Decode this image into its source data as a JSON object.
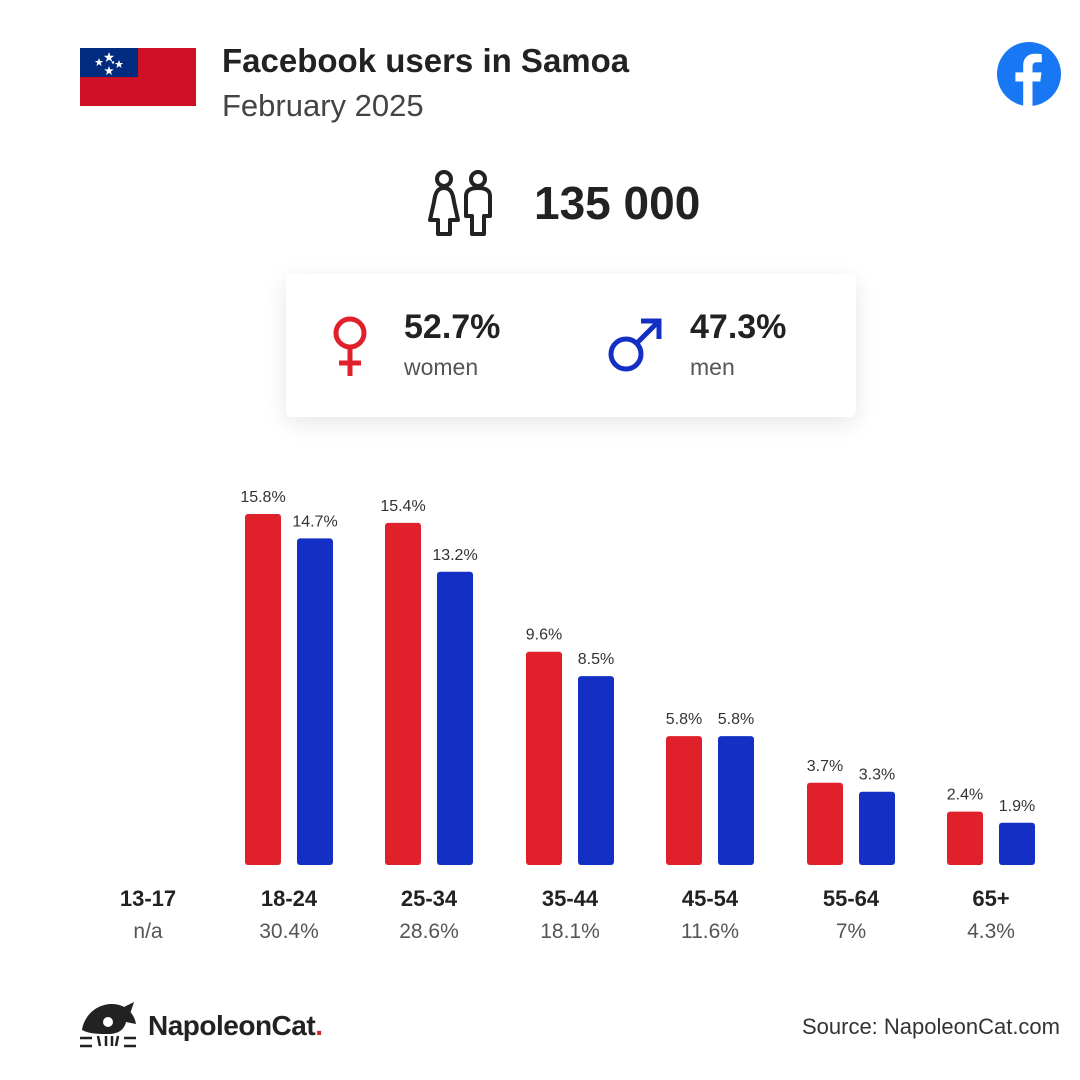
{
  "header": {
    "title": "Facebook users in Samoa",
    "subtitle": "February 2025",
    "flag_icon": "samoa-flag",
    "brand_icon": "facebook-icon"
  },
  "summary": {
    "total_users": "135 000",
    "icon": "people-icon"
  },
  "gender": {
    "women": {
      "pct": "52.7%",
      "label": "women",
      "icon": "female-symbol-icon",
      "color": "#e0202a"
    },
    "men": {
      "pct": "47.3%",
      "label": "men",
      "icon": "male-symbol-icon",
      "color": "#1430c4"
    }
  },
  "chart_data": {
    "type": "bar",
    "categories": [
      "13-17",
      "18-24",
      "25-34",
      "35-44",
      "45-54",
      "55-64",
      "65+"
    ],
    "category_totals": [
      "n/a",
      "30.4%",
      "28.6%",
      "18.1%",
      "11.6%",
      "7%",
      "4.3%"
    ],
    "series": [
      {
        "key": "women",
        "color": "#e0202a",
        "values": [
          null,
          15.8,
          15.4,
          9.6,
          5.8,
          3.7,
          2.4
        ],
        "labels": [
          "",
          "15.8%",
          "15.4%",
          "9.6%",
          "5.8%",
          "3.7%",
          "2.4%"
        ]
      },
      {
        "key": "men",
        "color": "#1430c4",
        "values": [
          null,
          14.7,
          13.2,
          8.5,
          5.8,
          3.3,
          1.9
        ],
        "labels": [
          "",
          "14.7%",
          "13.2%",
          "8.5%",
          "5.8%",
          "3.3%",
          "1.9%"
        ]
      }
    ],
    "ylim": [
      0,
      15.8
    ],
    "grid": false,
    "legend": "none"
  },
  "footer": {
    "brand_name": "NapoleonCat",
    "brand_dot": ".",
    "brand_icon": "napoleoncat-logo-icon",
    "source": "Source: NapoleonCat.com"
  }
}
